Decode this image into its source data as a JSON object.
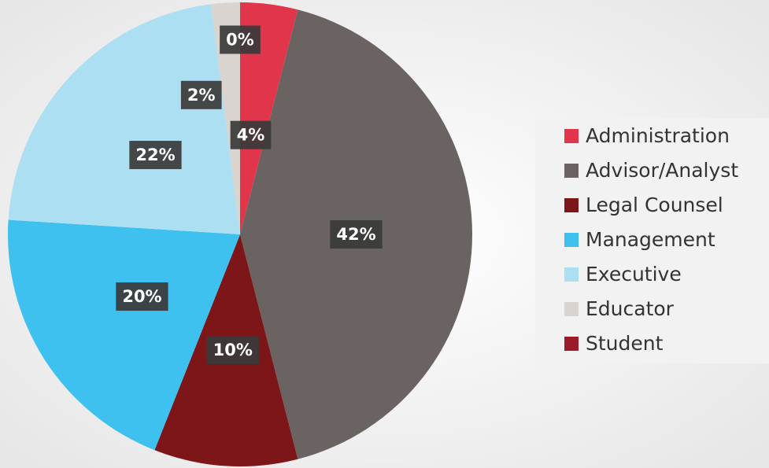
{
  "chart_data": {
    "type": "pie",
    "categories": [
      "Administration",
      "Advisor/Analyst",
      "Legal Counsel",
      "Management",
      "Executive",
      "Educator",
      "Student"
    ],
    "values": [
      4,
      42,
      10,
      20,
      22,
      2,
      0
    ],
    "value_labels": [
      "4%",
      "42%",
      "10%",
      "20%",
      "22%",
      "2%",
      "0%"
    ],
    "colors": [
      "#e0354a",
      "#6b6361",
      "#7d1619",
      "#3ec1ee",
      "#addff2",
      "#d9d4cf",
      "#9b1b2a"
    ],
    "legend": "right"
  }
}
